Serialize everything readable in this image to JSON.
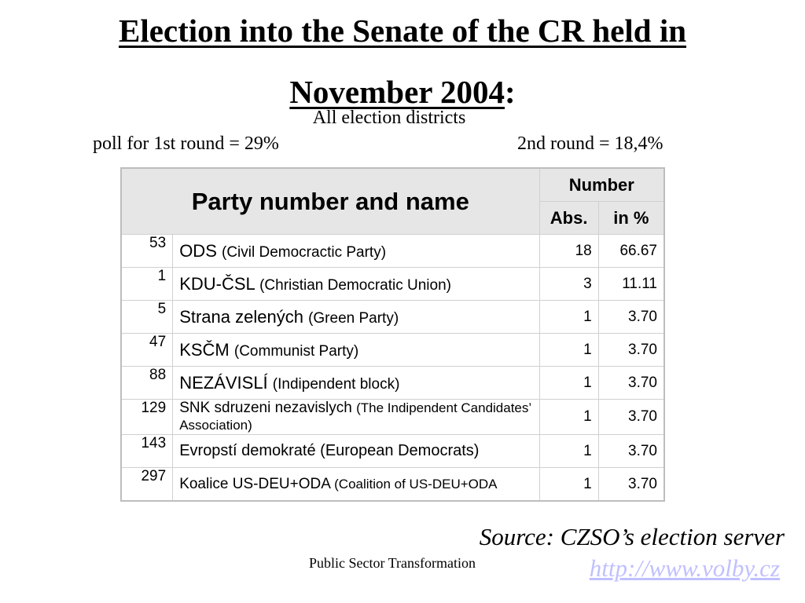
{
  "title_line1": "Election into the Senate of the CR held in",
  "title_line2": "November 2004",
  "title_colon": ":",
  "subtitle": "All election districts",
  "poll_first": "poll for 1st round = 29%",
  "poll_second": "2nd round = 18,4%",
  "table": {
    "header_party": "Party number and name",
    "header_number": "Number",
    "header_abs": "Abs.",
    "header_pct": "in %",
    "rows": [
      {
        "num": "53",
        "name": "ODS",
        "english": "(Civil Democractic Party)",
        "abs": "18",
        "pct": "66.67"
      },
      {
        "num": "1",
        "name": "KDU-ČSL",
        "english": "(Christian Democratic Union)",
        "abs": "3",
        "pct": "11.11"
      },
      {
        "num": "5",
        "name": "Strana zelených",
        "english": "(Green Party)",
        "abs": "1",
        "pct": "3.70"
      },
      {
        "num": "47",
        "name": "KSČM",
        "english": "(Communist Party)",
        "abs": "1",
        "pct": "3.70"
      },
      {
        "num": "88",
        "name": "NEZÁVISLÍ",
        "english": "(Indipendent block)",
        "abs": "1",
        "pct": "3.70"
      },
      {
        "num": "129",
        "name": "SNK sdruzeni nezavislych",
        "english": "(The Indipendent Candidates’ Association)",
        "abs": "1",
        "pct": "3.70"
      },
      {
        "num": "143",
        "name": "Evropstí demokraté (European Democrats)",
        "english": "",
        "abs": "1",
        "pct": "3.70"
      },
      {
        "num": "297",
        "name": "Koalice US-DEU+ODA",
        "english": "(Coalition of US-DEU+ODA",
        "abs": "1",
        "pct": "3.70"
      }
    ]
  },
  "source": "Source: CZSO’s election server",
  "link": "http://www.volby.cz",
  "footer": "Public Sector Transformation"
}
